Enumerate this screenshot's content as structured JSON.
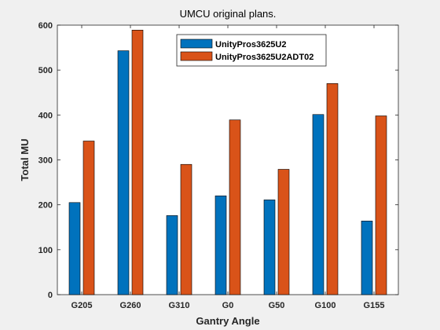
{
  "chart_data": {
    "type": "bar",
    "title": "UMCU original plans.",
    "xlabel": "Gantry Angle",
    "ylabel": "Total MU",
    "categories": [
      "G205",
      "G260",
      "G310",
      "G0",
      "G50",
      "G100",
      "G155"
    ],
    "ylim": [
      0,
      600
    ],
    "yticks": [
      0,
      100,
      200,
      300,
      400,
      500,
      600
    ],
    "grid": false,
    "legend_position": "top-center",
    "series": [
      {
        "name": "UnityPros3625U2",
        "color": "#0072BD",
        "values": [
          205,
          543,
          176,
          220,
          211,
          401,
          164
        ]
      },
      {
        "name": "UnityPros3625U2ADT02",
        "color": "#D95319",
        "values": [
          342,
          589,
          290,
          389,
          279,
          470,
          398
        ]
      }
    ]
  }
}
